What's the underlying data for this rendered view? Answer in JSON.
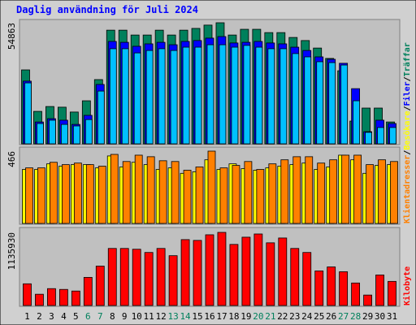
{
  "legend_separator": "/",
  "chart_data": [
    {
      "type": "bar",
      "title": "Daglig användning för Juli 2024",
      "ylim": [
        0,
        54863
      ],
      "yticks": [
        54863
      ],
      "series": [
        {
          "name": "Träffar",
          "color": "#00805c",
          "values": [
            33500,
            14700,
            16900,
            16600,
            14400,
            19500,
            29100,
            51500,
            51500,
            49300,
            49300,
            51500,
            49300,
            51500,
            52300,
            53800,
            54863,
            49300,
            51900,
            51900,
            50400,
            50400,
            48200,
            46800,
            43400,
            38700,
            33100,
            10300,
            16200,
            16200,
            9900
          ]
        },
        {
          "name": "Filer",
          "color": "#0000ff",
          "values": [
            28400,
            9900,
            11400,
            10700,
            8800,
            12900,
            26900,
            46400,
            46000,
            44200,
            45300,
            46000,
            44900,
            46400,
            46800,
            47900,
            48600,
            45700,
            46000,
            46400,
            45700,
            45300,
            43800,
            42300,
            39400,
            38300,
            36500,
            25000,
            5500,
            10700,
            9200
          ]
        },
        {
          "color": "#00c0ff",
          "values": [
            27600,
            9200,
            10700,
            8800,
            8100,
            11000,
            23900,
            43100,
            43100,
            41200,
            42300,
            43100,
            42300,
            43800,
            43800,
            44900,
            44900,
            43800,
            44600,
            43800,
            43100,
            43100,
            40900,
            39400,
            37200,
            36800,
            35700,
            19500,
            5200,
            7400,
            7400
          ]
        }
      ]
    },
    {
      "type": "bar",
      "ylim": [
        0,
        466
      ],
      "yticks": [
        466
      ],
      "series": [
        {
          "name": "Besökare",
          "color": "#ffff00",
          "values": [
            348,
            348,
            384,
            369,
            379,
            379,
            358,
            435,
            364,
            394,
            379,
            348,
            358,
            323,
            333,
            410,
            348,
            384,
            353,
            343,
            358,
            369,
            379,
            389,
            348,
            364,
            440,
            410,
            323,
            374,
            379
          ]
        },
        {
          "name": "Klientadresser",
          "color": "#ff8000",
          "values": [
            358,
            358,
            394,
            379,
            389,
            379,
            369,
            445,
            399,
            440,
            430,
            404,
            399,
            343,
            364,
            466,
            358,
            374,
            399,
            348,
            384,
            410,
            430,
            430,
            389,
            410,
            440,
            440,
            379,
            410,
            399
          ]
        }
      ]
    },
    {
      "type": "bar",
      "ylim": [
        0,
        1135930
      ],
      "yticks": [
        1135930
      ],
      "categories": [
        "1",
        "2",
        "3",
        "4",
        "5",
        "6",
        "7",
        "8",
        "9",
        "10",
        "11",
        "12",
        "13",
        "14",
        "15",
        "16",
        "17",
        "18",
        "19",
        "20",
        "21",
        "22",
        "23",
        "24",
        "25",
        "26",
        "27",
        "28",
        "29",
        "30",
        "31"
      ],
      "label_colors": [
        "#000000",
        "#000000",
        "#000000",
        "#000000",
        "#000000",
        "#00805c",
        "#00805c",
        "#000000",
        "#000000",
        "#000000",
        "#000000",
        "#000000",
        "#00805c",
        "#00805c",
        "#000000",
        "#000000",
        "#000000",
        "#000000",
        "#000000",
        "#00805c",
        "#00805c",
        "#000000",
        "#000000",
        "#000000",
        "#000000",
        "#000000",
        "#00805c",
        "#00805c",
        "#000000",
        "#000000",
        "#000000"
      ],
      "series": [
        {
          "name": "Kilobyte",
          "color": "#ff0000",
          "values": [
            337000,
            174800,
            262100,
            249700,
            224700,
            436900,
            611700,
            886300,
            886300,
            873800,
            823900,
            886300,
            774000,
            1023600,
            1011100,
            1098500,
            1135930,
            948700,
            1061100,
            1111000,
            973700,
            1048600,
            886300,
            823900,
            536800,
            599200,
            524300,
            349500,
            162300,
            474400,
            374500
          ]
        }
      ]
    }
  ]
}
